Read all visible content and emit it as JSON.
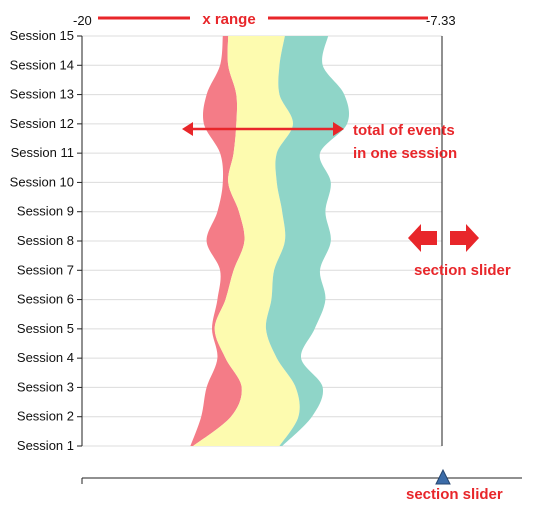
{
  "chart_data": {
    "type": "area",
    "subtype": "streamgraph",
    "categories": [
      "Session 1",
      "Session 2",
      "Session 3",
      "Session 4",
      "Session 5",
      "Session 6",
      "Session 7",
      "Session 8",
      "Session 9",
      "Session 10",
      "Session 11",
      "Session 12",
      "Session 13",
      "Session 14",
      "Session 15"
    ],
    "x_range": {
      "min_label": "-20",
      "max_label": "-7.33"
    },
    "series": [
      {
        "color": "#f47c87",
        "values": [
          0.1,
          1.1,
          1.3,
          0.3,
          0.1,
          0.3,
          0.5,
          1.4,
          0.8,
          0.2,
          0.5,
          1.2,
          1.1,
          0.3,
          0.2
        ]
      },
      {
        "color": "#fdfbaf",
        "values": [
          3.2,
          2.5,
          2.0,
          1.9,
          1.9,
          1.7,
          1.5,
          1.5,
          1.6,
          1.8,
          1.6,
          2.1,
          1.6,
          1.9,
          2.1
        ]
      },
      {
        "color": "#8fd5c8",
        "values": [
          0.1,
          0.5,
          1.0,
          0.9,
          1.8,
          2.0,
          1.7,
          1.7,
          1.6,
          2.0,
          1.6,
          2.0,
          2.4,
          1.6,
          1.6
        ]
      }
    ],
    "baseline_offset": [
      0.2,
      0.6,
      0.8,
      1.2,
      1.0,
      1.2,
      1.3,
      0.8,
      1.2,
      1.4,
      1.3,
      0.7,
      0.8,
      1.3,
      1.4
    ],
    "annotations": {
      "x_range": "x range",
      "total": [
        "total of events",
        "in one session"
      ],
      "slider_right": "section slider",
      "slider_bottom": "section slider"
    },
    "colors": {
      "annotation": "#e8262a",
      "slider_handle": "#3c6ca8"
    },
    "grid": true
  }
}
